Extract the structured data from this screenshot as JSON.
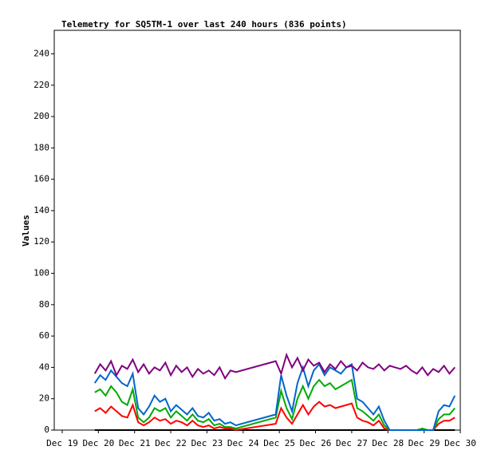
{
  "chart_data": {
    "type": "line",
    "title": "Telemetry for SQ5TM-1 over last 240 hours (836 points)",
    "y_label": "Values",
    "x": [
      19.9,
      20.05,
      20.2,
      20.35,
      20.5,
      20.65,
      20.8,
      20.95,
      21.1,
      21.25,
      21.4,
      21.55,
      21.7,
      21.85,
      22.0,
      22.15,
      22.3,
      22.45,
      22.6,
      22.75,
      22.9,
      23.05,
      23.2,
      23.35,
      23.5,
      23.65,
      23.8,
      24.9,
      25.05,
      25.2,
      25.35,
      25.5,
      25.65,
      25.8,
      25.95,
      26.1,
      26.25,
      26.4,
      26.55,
      26.7,
      26.85,
      27.0,
      27.15,
      27.3,
      27.45,
      27.6,
      27.75,
      27.9,
      28.05,
      28.2,
      28.35,
      28.5,
      28.65,
      28.8,
      28.95,
      29.1,
      29.25,
      29.4,
      29.55,
      29.7,
      29.85
    ],
    "series": [
      {
        "color": "#000000",
        "values": [
          0,
          0,
          0,
          0,
          0,
          0,
          0,
          0,
          0,
          0,
          0,
          0,
          0,
          0,
          0,
          0,
          0,
          0,
          0,
          0,
          0,
          0,
          0,
          0,
          0,
          0,
          0,
          0,
          0,
          0,
          0,
          0,
          0,
          0,
          0,
          0,
          0,
          0,
          0,
          0,
          0,
          0,
          0,
          0,
          0,
          0,
          0,
          0,
          0,
          0,
          0,
          0,
          0,
          0,
          0,
          0,
          0,
          0,
          0,
          0,
          0
        ]
      },
      {
        "color": "#ff0000",
        "values": [
          12,
          14,
          11,
          15,
          12,
          9,
          8,
          16,
          5,
          3,
          5,
          8,
          6,
          7,
          4,
          6,
          5,
          3,
          6,
          3,
          2,
          3,
          1,
          2,
          1,
          1,
          0,
          4,
          14,
          8,
          4,
          10,
          16,
          10,
          15,
          18,
          15,
          16,
          14,
          15,
          16,
          17,
          8,
          6,
          5,
          3,
          6,
          1,
          0,
          0,
          0,
          0,
          0,
          0,
          0,
          0,
          0,
          4,
          6,
          6,
          8
        ]
      },
      {
        "color": "#00aa00",
        "values": [
          24,
          26,
          22,
          28,
          24,
          18,
          16,
          26,
          8,
          5,
          8,
          14,
          12,
          14,
          8,
          12,
          9,
          6,
          10,
          6,
          5,
          7,
          3,
          4,
          2,
          2,
          1,
          8,
          25,
          14,
          7,
          20,
          28,
          20,
          28,
          32,
          28,
          30,
          26,
          28,
          30,
          32,
          14,
          12,
          9,
          6,
          10,
          3,
          0,
          0,
          0,
          0,
          0,
          0,
          1,
          0,
          0,
          7,
          10,
          10,
          14
        ]
      },
      {
        "color": "#0066cc",
        "values": [
          30,
          35,
          32,
          38,
          34,
          30,
          28,
          36,
          14,
          10,
          15,
          22,
          18,
          20,
          12,
          16,
          13,
          10,
          14,
          9,
          8,
          11,
          6,
          7,
          4,
          5,
          3,
          10,
          35,
          22,
          12,
          30,
          40,
          28,
          38,
          42,
          35,
          40,
          38,
          36,
          40,
          42,
          20,
          18,
          14,
          10,
          15,
          6,
          0,
          0,
          0,
          0,
          0,
          0,
          0,
          0,
          0,
          12,
          16,
          15,
          22
        ]
      },
      {
        "color": "#800080",
        "values": [
          36,
          42,
          38,
          44,
          35,
          41,
          39,
          45,
          37,
          42,
          36,
          40,
          38,
          43,
          35,
          41,
          37,
          40,
          34,
          39,
          36,
          38,
          35,
          40,
          33,
          38,
          37,
          44,
          36,
          48,
          40,
          46,
          38,
          45,
          41,
          43,
          37,
          42,
          39,
          44,
          40,
          41,
          38,
          43,
          40,
          39,
          42,
          38,
          41,
          40,
          39,
          41,
          38,
          36,
          40,
          35,
          39,
          37,
          41,
          36,
          40
        ]
      }
    ],
    "xlim": [
      18.78,
      30
    ],
    "xticks": [
      {
        "value": 19,
        "label": "Dec 19"
      },
      {
        "value": 20,
        "label": "Dec 20"
      },
      {
        "value": 21,
        "label": "Dec 21"
      },
      {
        "value": 22,
        "label": "Dec 22"
      },
      {
        "value": 23,
        "label": "Dec 23"
      },
      {
        "value": 24,
        "label": "Dec 24"
      },
      {
        "value": 25,
        "label": "Dec 25"
      },
      {
        "value": 26,
        "label": "Dec 26"
      },
      {
        "value": 27,
        "label": "Dec 27"
      },
      {
        "value": 28,
        "label": "Dec 28"
      },
      {
        "value": 29,
        "label": "Dec 29"
      },
      {
        "value": 30,
        "label": "Dec 30"
      }
    ],
    "ylim": [
      0,
      255
    ],
    "yticks": [
      0,
      20,
      40,
      60,
      80,
      100,
      120,
      140,
      160,
      180,
      200,
      220,
      240
    ]
  }
}
